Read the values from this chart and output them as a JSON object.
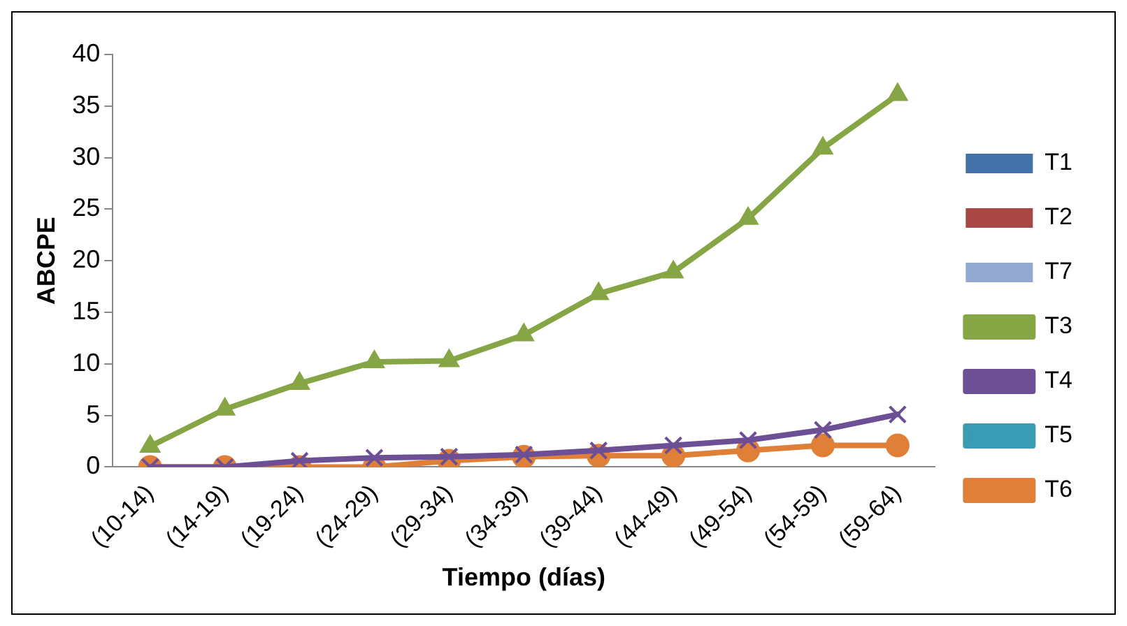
{
  "chart_data": {
    "type": "line",
    "xlabel": "Tiempo (días)",
    "ylabel": "ABCPE",
    "categories": [
      "(10-14)",
      "(14-19)",
      "(19-24)",
      "(24-29)",
      "(29-34)",
      "(34-39)",
      "(39-44)",
      "(44-49)",
      "(49-54)",
      "(54-59)",
      "(59-64)"
    ],
    "series": [
      {
        "name": "T1",
        "type": "bar",
        "color": "#4472a8",
        "values": [
          0,
          0,
          0,
          0,
          0,
          0,
          0,
          0,
          0,
          0,
          0
        ]
      },
      {
        "name": "T2",
        "type": "bar",
        "color": "#a84744",
        "values": [
          0,
          0,
          0,
          0,
          0,
          0,
          0,
          0,
          0,
          0,
          0
        ]
      },
      {
        "name": "T7",
        "type": "bar",
        "color": "#93a9cf",
        "values": [
          0,
          0,
          0,
          0,
          0,
          0,
          0,
          0,
          0,
          0,
          0
        ]
      },
      {
        "name": "T3",
        "color": "#86a544",
        "marker": "triangle",
        "values": [
          2.0,
          5.6,
          8.1,
          10.2,
          10.3,
          12.8,
          16.8,
          18.9,
          24.1,
          30.9,
          36.1
        ]
      },
      {
        "name": "T4",
        "color": "#6c4f94",
        "marker": "cross",
        "values": [
          0,
          0,
          0.6,
          0.9,
          1.0,
          1.2,
          1.6,
          2.1,
          2.6,
          3.6,
          5.1
        ]
      },
      {
        "name": "T5",
        "color": "#3a9bb5",
        "marker": "none",
        "values": [
          null,
          null,
          null,
          null,
          null,
          null,
          null,
          null,
          null,
          null,
          null
        ]
      },
      {
        "name": "T6",
        "color": "#e07f38",
        "marker": "circle",
        "values": [
          0,
          0,
          0,
          0,
          0.6,
          1.0,
          1.1,
          1.1,
          1.6,
          2.1,
          2.1
        ]
      }
    ],
    "ylim": [
      0,
      40
    ],
    "yticks": [
      0,
      5,
      10,
      15,
      20,
      25,
      30,
      35,
      40
    ],
    "grid": false,
    "legend": "right"
  }
}
